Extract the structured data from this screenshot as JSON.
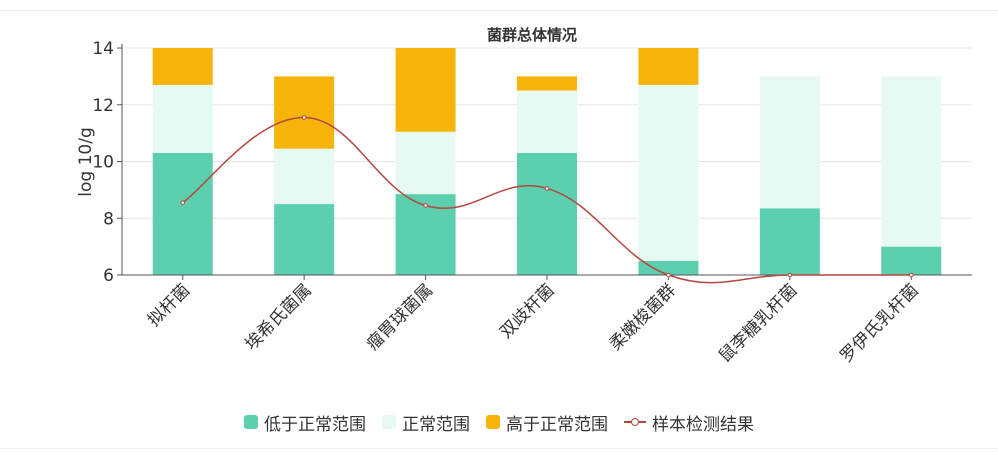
{
  "chart_data": {
    "type": "bar",
    "title": "菌群总体情况",
    "ylabel": "log 10/g",
    "xlabel": "",
    "ylim": [
      6,
      14
    ],
    "yticks": [
      6,
      8,
      10,
      12,
      14
    ],
    "grid": true,
    "legend_position": "bottom",
    "categories": [
      "拟杆菌",
      "埃希氏菌属",
      "瘤胃球菌属",
      "双歧杆菌",
      "柔嫩梭菌群",
      "鼠李糖乳杆菌",
      "罗伊氏乳杆菌"
    ],
    "stacks": [
      {
        "name": "低于正常范围",
        "color": "#5ccfae",
        "top": [
          10.3,
          8.5,
          8.85,
          10.3,
          6.5,
          8.35,
          7.0
        ]
      },
      {
        "name": "正常范围",
        "color": "#e6faf3",
        "top": [
          12.7,
          10.45,
          11.05,
          12.5,
          12.7,
          13.0,
          13.0
        ]
      },
      {
        "name": "高于正常范围",
        "color": "#f6b30a",
        "top": [
          14.0,
          13.0,
          14.0,
          13.0,
          14.0,
          13.0,
          13.0
        ]
      }
    ],
    "line_series": {
      "name": "样本检测结果",
      "color": "#b5473f",
      "values": [
        8.55,
        11.55,
        8.45,
        9.05,
        6.0,
        6.0,
        6.0
      ]
    }
  }
}
